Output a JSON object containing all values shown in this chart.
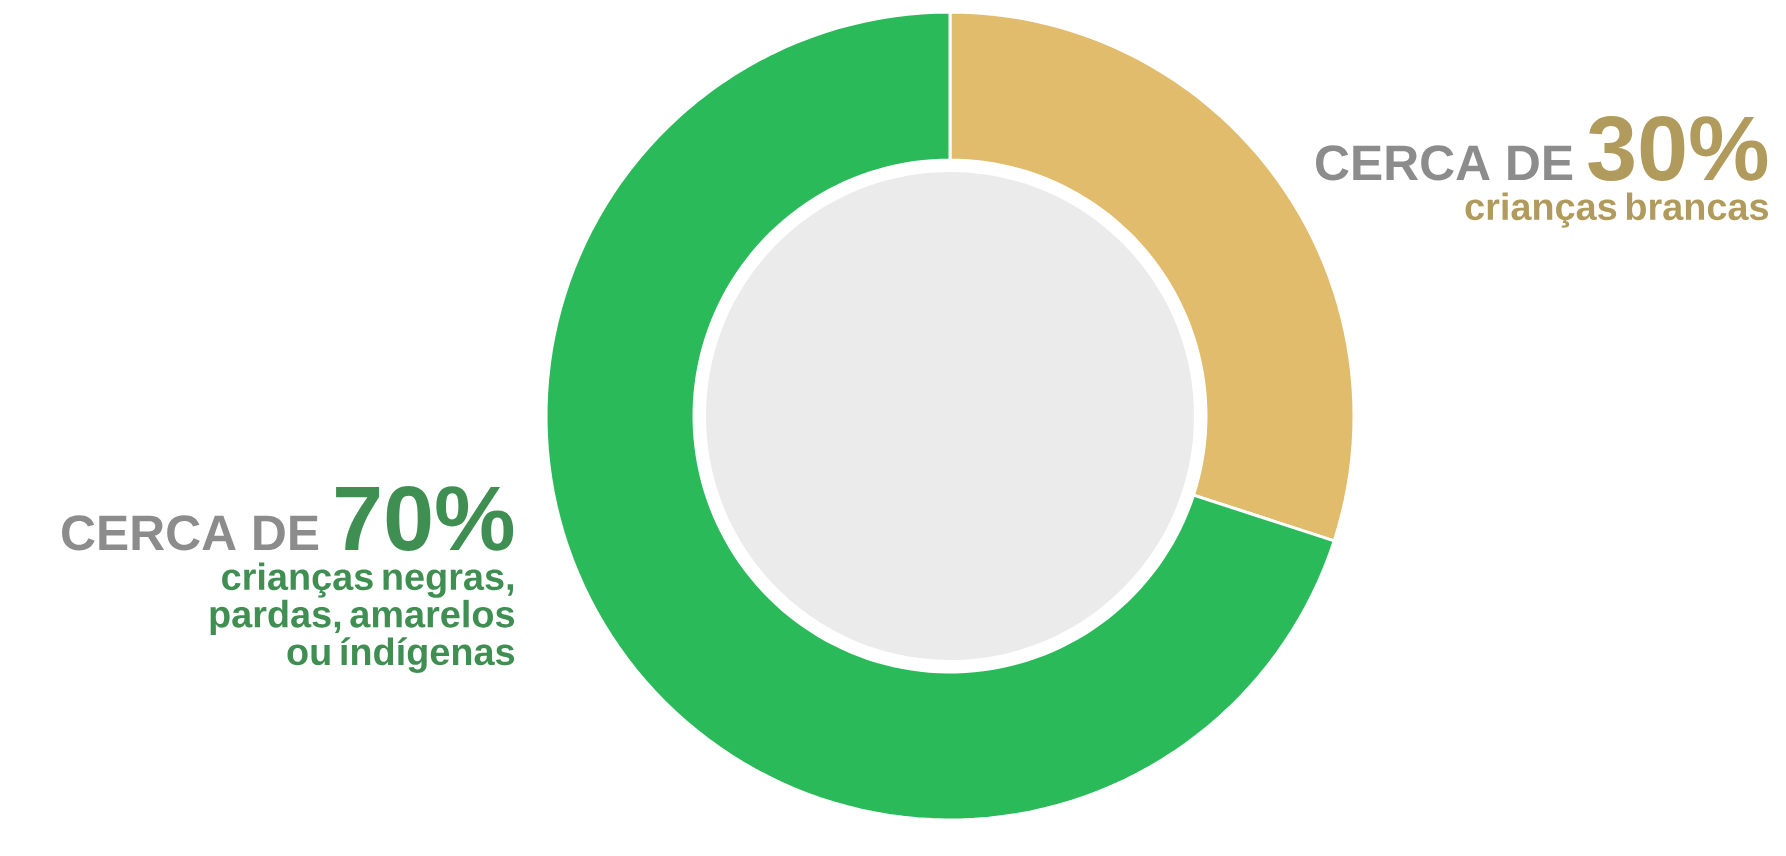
{
  "chart_data": {
    "type": "donut",
    "categories": [
      "crianças brancas",
      "crianças negras, pardas, amarelos ou índígenas"
    ],
    "values": [
      30,
      70
    ],
    "colors": [
      "#e0bc6c",
      "#2bba5a"
    ],
    "value_labels": [
      "30%",
      "70%"
    ],
    "annotations": [
      "CERCA DE",
      "CERCA DE"
    ]
  }
}
